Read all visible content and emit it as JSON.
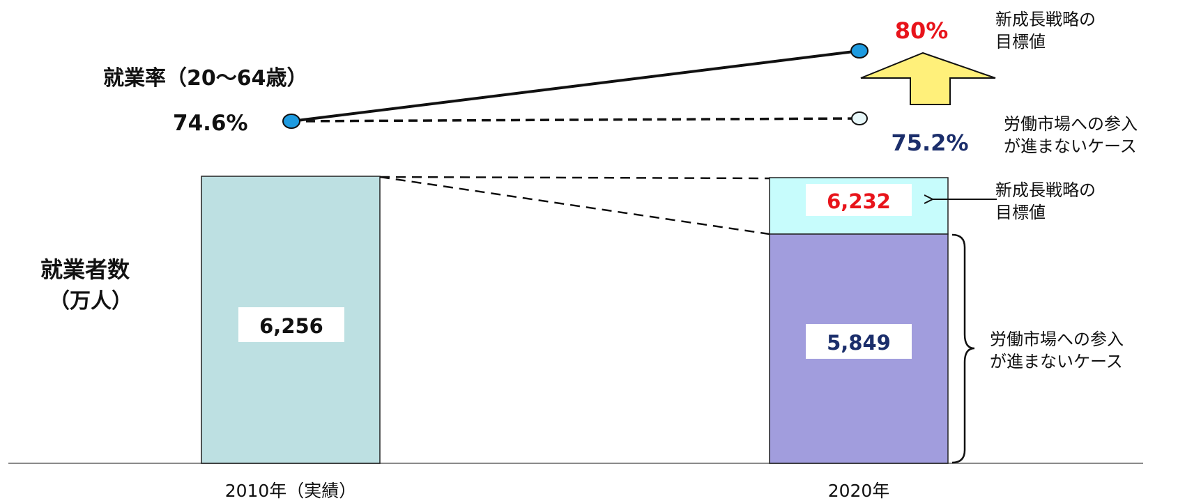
{
  "chart_data": [
    {
      "type": "line",
      "title": "就業率（20～64歳）",
      "x": [
        "2010年（実績）",
        "2020年"
      ],
      "series": [
        {
          "name": "新成長戦略の目標値",
          "values": [
            74.6,
            80
          ],
          "labels": [
            "74.6%",
            "80%"
          ],
          "line_style": "solid",
          "marker_color": "#1e9be0"
        },
        {
          "name": "労働市場への参入が進まないケース",
          "values": [
            74.6,
            75.2
          ],
          "labels": [
            "74.6%",
            "75.2%"
          ],
          "line_style": "dashed",
          "marker_color": "#e8f8fa"
        }
      ],
      "arrow_color": "#fff07a"
    },
    {
      "type": "bar",
      "ylabel": "就業者数（万人）",
      "categories": [
        "2010年（実績）",
        "2020年"
      ],
      "series": [
        {
          "name": "労働市場への参入が進まないケース",
          "values": [
            6256,
            5849
          ],
          "labels": [
            "6,256",
            "5,849"
          ],
          "colors": [
            "#bde0e2",
            "#a19ddd"
          ]
        },
        {
          "name": "新成長戦略の目標値",
          "values": [
            null,
            6232
          ],
          "labels": [
            null,
            "6,232"
          ],
          "colors": [
            null,
            "#c7fcfc"
          ]
        }
      ],
      "ylim": [
        0,
        6256
      ],
      "grid": false
    }
  ],
  "labels": {
    "rate_title": "就業率（20～64歳）",
    "rate_2010": "74.6%",
    "rate_2020_target": "80%",
    "rate_2020_base": "75.2%",
    "target_line1": "新成長戦略の",
    "target_line2": "目標値",
    "base_line1": "労働市場への参入",
    "base_line2": "が進まないケース",
    "workers_line1": "就業者数",
    "workers_line2": "（万人）",
    "bar_2010_value": "6,256",
    "bar_2020_target_value": "6,232",
    "bar_2020_base_value": "5,849",
    "x_2010": "2010年（実績）",
    "x_2020": "2020年"
  },
  "colors": {
    "target_text": "#e8141b",
    "base_text": "#1b2e6b",
    "black": "#111111"
  }
}
